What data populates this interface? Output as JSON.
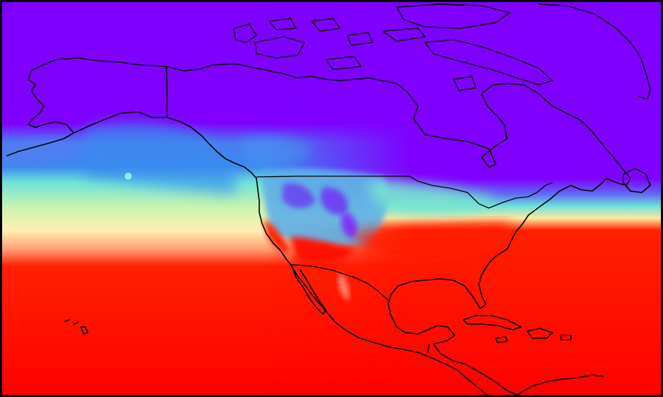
{
  "map": {
    "projection": "plate-carree",
    "lon_range": [
      -180,
      -50
    ],
    "lat_range": [
      5,
      83
    ],
    "colormap": "rainbow",
    "frame_color": "#000000",
    "coastline_color": "#000000",
    "field_colors": {
      "low": "#7f00ff",
      "blue": "#3b8bef",
      "cyan": "#6fe3d8",
      "pale": "#fff0b0",
      "orange": "#ff9a70",
      "high": "#ff0000"
    },
    "features": [
      "coastlines",
      "national-borders",
      "gridded-temperature-field"
    ]
  }
}
